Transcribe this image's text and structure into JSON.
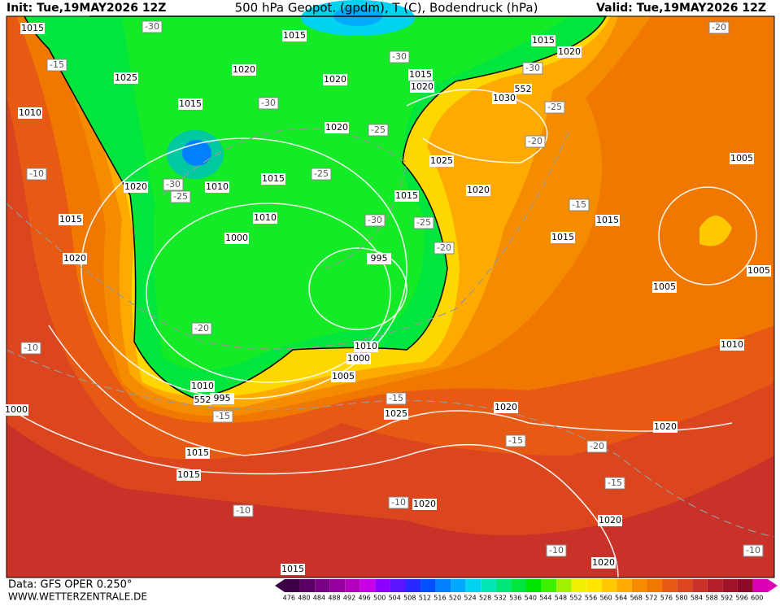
{
  "header": {
    "init": "Init: Tue,19MAY2026 12Z",
    "title": "500 hPa Geopot. (gpdm), T (C), Bodendruck (hPa)",
    "valid": "Valid: Tue,19MAY2026 12Z"
  },
  "footer": {
    "data": "Data: GFS OPER 0.250°",
    "site": "WWW.WETTERZENTRALE.DE"
  },
  "colorbar": {
    "labels": [
      "476",
      "480",
      "484",
      "488",
      "492",
      "496",
      "500",
      "504",
      "508",
      "512",
      "516",
      "520",
      "524",
      "528",
      "532",
      "536",
      "540",
      "544",
      "548",
      "552",
      "556",
      "560",
      "564",
      "568",
      "572",
      "576",
      "580",
      "584",
      "588",
      "592",
      "596",
      "600"
    ],
    "colors": [
      "#3c0046",
      "#5a0064",
      "#7a0082",
      "#9600a0",
      "#b400be",
      "#c800e6",
      "#8c00ff",
      "#5a14ff",
      "#2828ff",
      "#0050ff",
      "#0080ff",
      "#00aaff",
      "#00d2f0",
      "#00e6b4",
      "#00e678",
      "#00e63c",
      "#00e600",
      "#3cf000",
      "#a0f000",
      "#f0f000",
      "#ffe600",
      "#ffc800",
      "#ffaa00",
      "#f58c00",
      "#f07800",
      "#e65a14",
      "#dc461e",
      "#c83228",
      "#b41e28",
      "#a01428",
      "#8c0a28",
      "#dc00b4"
    ]
  },
  "map": {
    "isobar_labels": [
      "1015",
      "1015",
      "1015",
      "1020",
      "1025",
      "1020",
      "1020",
      "1015",
      "1020",
      "1030",
      "1015",
      "1010",
      "1020",
      "1025",
      "1015",
      "1010",
      "1020",
      "1015",
      "1020",
      "1010",
      "1015",
      "1015",
      "1015",
      "1005",
      "1000",
      "995",
      "1020",
      "1005",
      "1005",
      "1010",
      "1010",
      "1000",
      "1005",
      "1010",
      "995",
      "1000",
      "1025",
      "1020",
      "1020",
      "1015",
      "1015",
      "1020",
      "1020",
      "1020",
      "1015"
    ],
    "temperature_labels": [
      "-30",
      "-15",
      "-30",
      "-30",
      "-25",
      "-30",
      "-25",
      "-20",
      "-25",
      "-10",
      "-30",
      "-25",
      "-30",
      "-25",
      "-20",
      "-15",
      "-20",
      "-10",
      "-15",
      "-15",
      "-15",
      "-20",
      "-15",
      "-10",
      "-10",
      "-10",
      "-10",
      "-20"
    ],
    "geopotential_labels": [
      "552",
      "552"
    ]
  }
}
